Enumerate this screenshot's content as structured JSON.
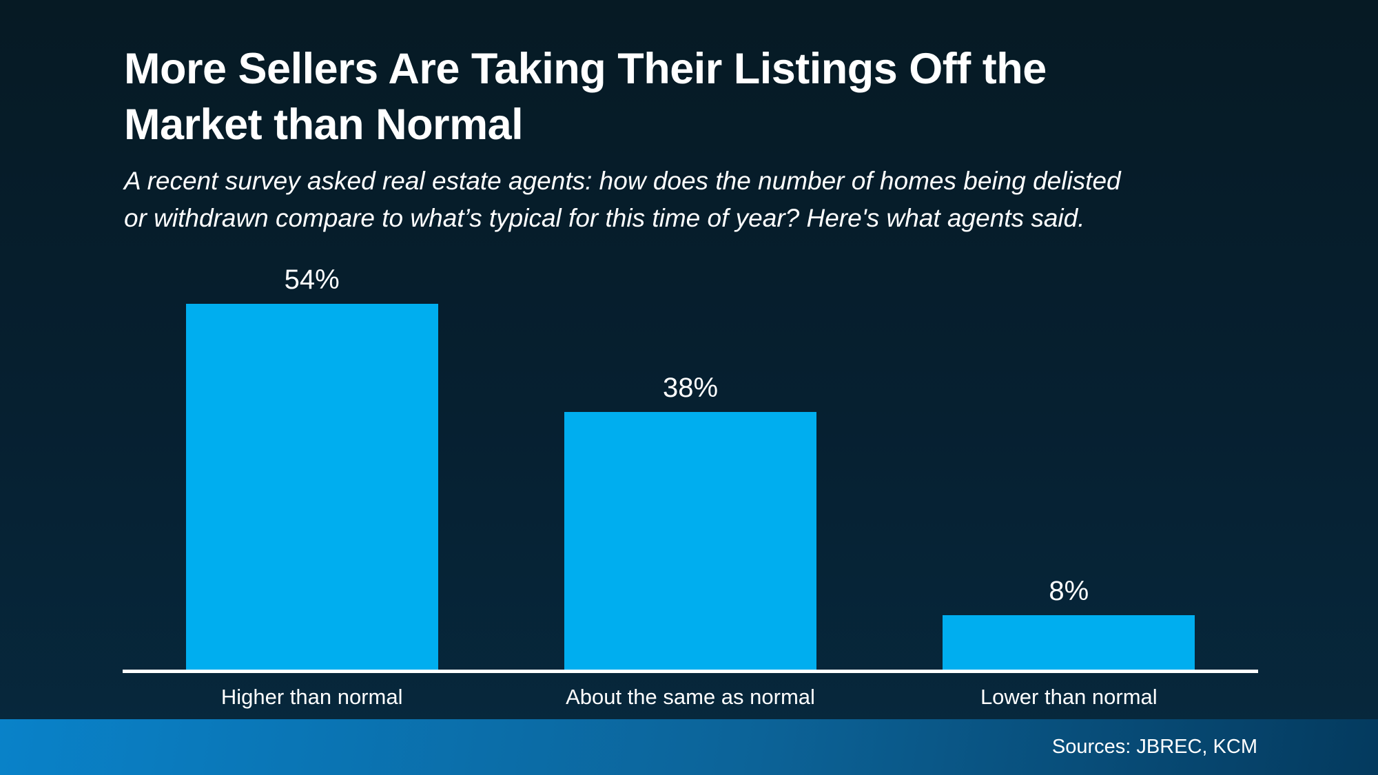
{
  "header": {
    "title_lines": [
      "More Sellers Are Taking Their Listings Off the",
      "Market than Normal"
    ],
    "subtitle_lines": [
      "A recent survey asked real estate agents: how does the number of homes being delisted",
      "or withdrawn compare to what’s typical for this time of year? Here's what agents said."
    ]
  },
  "chart_data": {
    "type": "bar",
    "title": "More Sellers Are Taking Their Listings Off the Market than Normal",
    "subtitle": "A recent survey asked real estate agents: how does the number of homes being delisted or withdrawn compare to what’s typical for this time of year? Here's what agents said.",
    "categories": [
      "Higher than normal",
      "About the same as normal",
      "Lower than normal"
    ],
    "values": [
      54,
      38,
      8
    ],
    "value_labels": [
      "54%",
      "38%",
      "8%"
    ],
    "unit": "percent",
    "ylim": [
      0,
      60
    ],
    "grid": false,
    "legend": false,
    "bar_color": "#00AEEF",
    "axis_color": "#FFFFFF",
    "label_color": "#FFFFFF"
  },
  "footer": {
    "sources": "Sources: JBREC, KCM"
  },
  "colors": {
    "background_top": "#061A24",
    "background_bottom": "#07293E",
    "footer_gradient_left": "#0982C9",
    "footer_gradient_right": "#043A5E",
    "bar": "#00AEEF",
    "text": "#FFFFFF"
  }
}
